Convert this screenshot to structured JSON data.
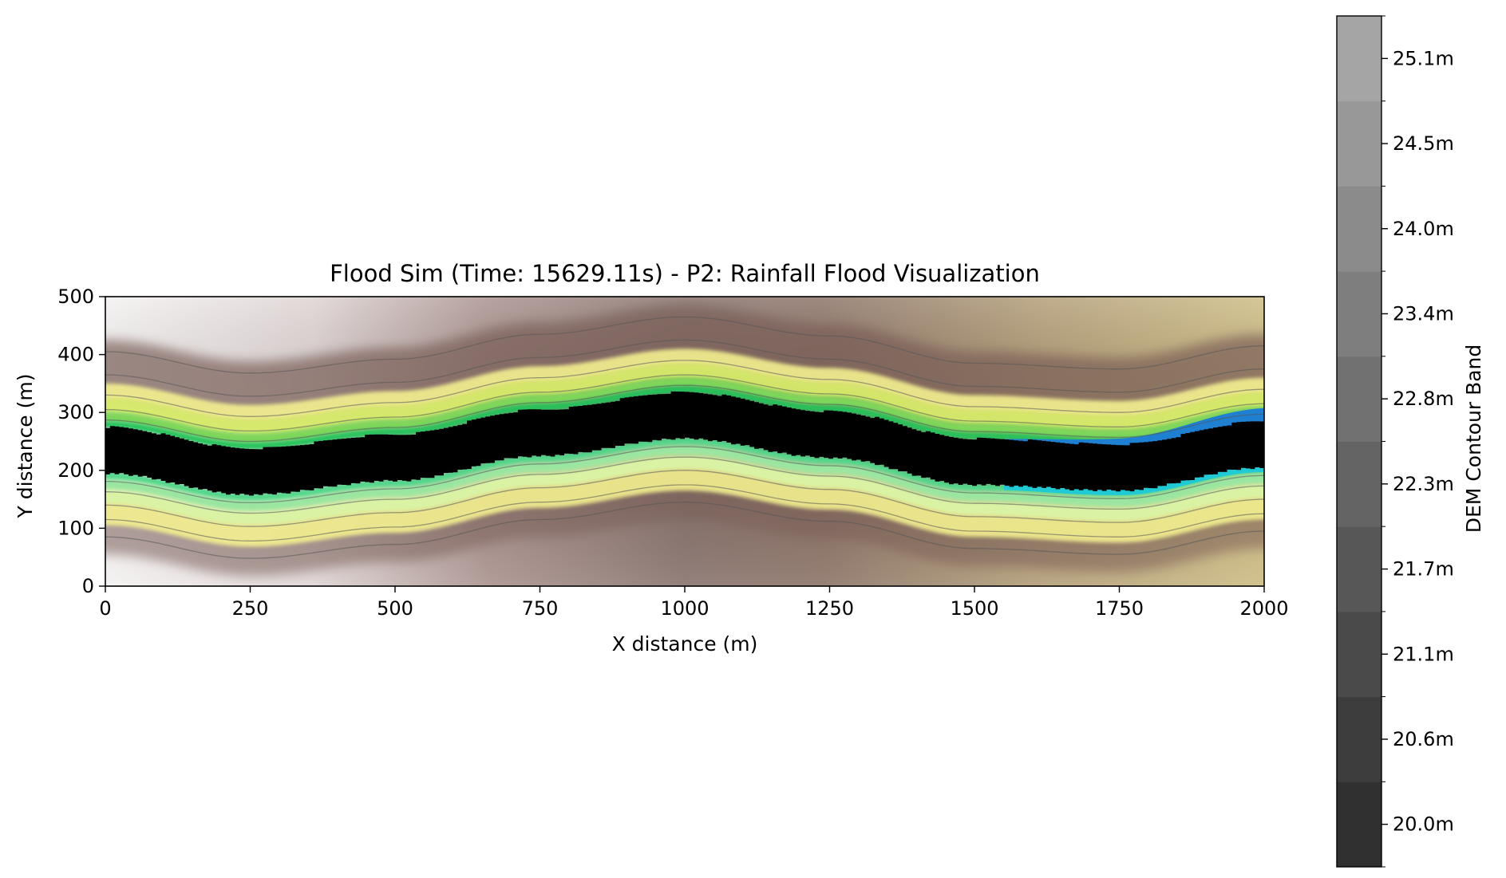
{
  "chart_data": {
    "type": "heatmap",
    "title": "Flood Sim (Time: 15629.11s) - P2: Rainfall Flood Visualization",
    "xlabel": "X distance (m)",
    "ylabel": "Y distance (m)",
    "xlim": [
      0,
      2000
    ],
    "ylim": [
      0,
      500
    ],
    "xticks": [
      0,
      250,
      500,
      750,
      1000,
      1250,
      1500,
      1750,
      2000
    ],
    "yticks": [
      0,
      100,
      200,
      300,
      400,
      500
    ],
    "channel_centerline": {
      "x": [
        0,
        250,
        500,
        750,
        1000,
        1250,
        1500,
        1750,
        2000
      ],
      "y": [
        235,
        198,
        222,
        265,
        295,
        262,
        215,
        205,
        245
      ]
    },
    "channel_half_width": 40,
    "colorbar": {
      "label": "DEM Contour Band",
      "tick_labels": [
        "20.0m",
        "20.6m",
        "21.1m",
        "21.7m",
        "22.3m",
        "22.8m",
        "23.4m",
        "24.0m",
        "24.5m",
        "25.1m"
      ],
      "band_colors": [
        "#303030",
        "#3d3d3d",
        "#4a4a4a",
        "#575757",
        "#646464",
        "#717171",
        "#7e7e7e",
        "#8b8b8b",
        "#989898",
        "#a5a5a5"
      ]
    },
    "colors": {
      "flood": "#000000",
      "bank_near": "#22c35a",
      "bank_far": "#f4f090",
      "hill_low": "#7a5f58",
      "hill_high": "#f6f4f4",
      "hill_right": "#c6b47e",
      "deep_water": "#1f7fd0",
      "shallow_water": "#18c8e0"
    }
  }
}
